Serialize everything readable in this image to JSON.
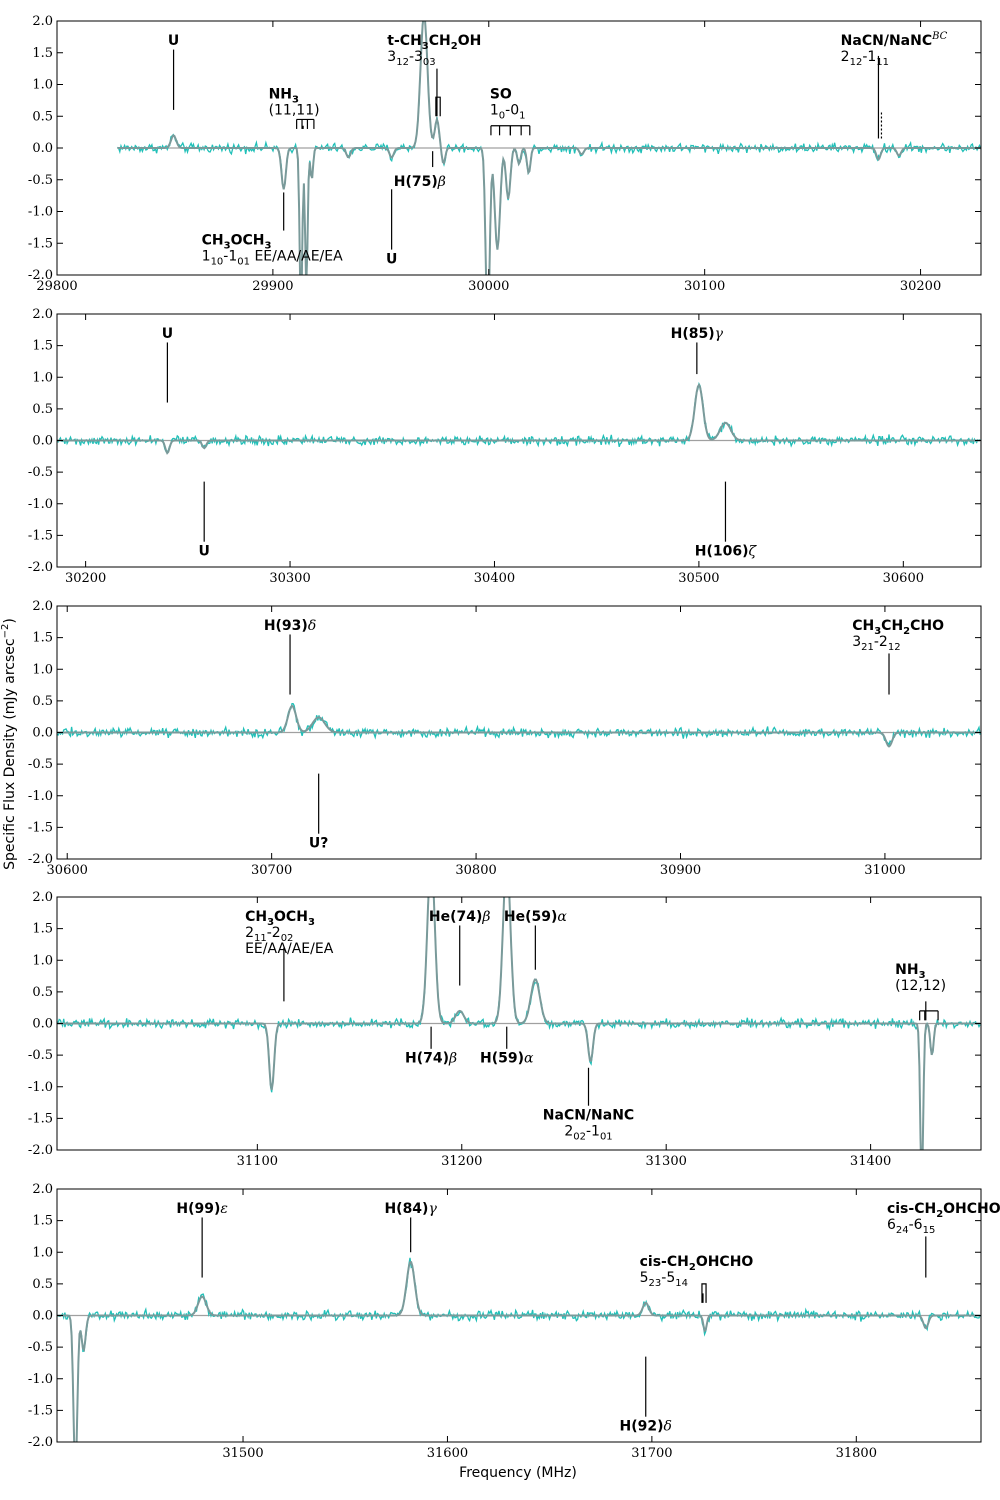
{
  "figure": {
    "ylabel": "Specific Flux Density (mJy arcsec",
    "ylabel_sup": "−2",
    "ylabel_close": ")",
    "xlabel": "Frequency (MHz)"
  },
  "colors": {
    "observed": "#20c0b8",
    "model": "#7a9a9a",
    "baseline": "#a0a0a0",
    "frame": "#000000"
  },
  "chart_data": [
    {
      "type": "line",
      "xlim": [
        29800,
        30228
      ],
      "ylim": [
        -2.0,
        2.0
      ],
      "xticks": [
        29800,
        29900,
        30000,
        30100,
        30200
      ],
      "yticks": [
        -2.0,
        -1.5,
        -1.0,
        -0.5,
        0.0,
        0.5,
        1.0,
        1.5,
        2.0
      ],
      "data_x_start": 29828,
      "features": [
        {
          "x": 29854,
          "w": 1.2,
          "a": 0.2
        },
        {
          "x": 29905,
          "w": 1.0,
          "a": -0.65
        },
        {
          "x": 29913,
          "w": 0.6,
          "a": -2.6
        },
        {
          "x": 29915.5,
          "w": 0.6,
          "a": -2.2
        },
        {
          "x": 29918,
          "w": 0.6,
          "a": -0.5
        },
        {
          "x": 29935,
          "w": 1.0,
          "a": -0.15
        },
        {
          "x": 29955,
          "w": 1.0,
          "a": -0.15
        },
        {
          "x": 29970,
          "w": 1.6,
          "a": 2.1
        },
        {
          "x": 29976,
          "w": 1.0,
          "a": 0.45
        },
        {
          "x": 29979,
          "w": 0.8,
          "a": -0.25
        },
        {
          "x": 29999.5,
          "w": 0.9,
          "a": -2.9
        },
        {
          "x": 30004,
          "w": 1.2,
          "a": -1.6
        },
        {
          "x": 30009,
          "w": 1.0,
          "a": -0.8
        },
        {
          "x": 30014,
          "w": 0.8,
          "a": -0.25
        },
        {
          "x": 30018.5,
          "w": 0.8,
          "a": -0.4
        },
        {
          "x": 30043,
          "w": 1.0,
          "a": -0.1
        },
        {
          "x": 30180.5,
          "w": 1.0,
          "a": -0.18
        },
        {
          "x": 30190,
          "w": 1.0,
          "a": -0.12
        }
      ],
      "annotations": [
        {
          "x": 29854,
          "y0": 0.6,
          "y1": 1.55,
          "title": "U",
          "text_x": 29854,
          "text_y": 1.62,
          "anchor": "middle",
          "extra": []
        },
        {
          "x": 29914,
          "y0": 0.3,
          "y1": 0.35,
          "title": "NH",
          "title_sub": "3",
          "text_x": 29898,
          "text_y": 0.78,
          "anchor": "start",
          "extra": [
            {
              "text": "(11,11)",
              "dy": 1
            }
          ],
          "bracket": [
            29911,
            29913.5,
            29916,
            29919
          ]
        },
        {
          "x": 29976,
          "y0": 0.5,
          "y1": 1.25,
          "title": "t-CH",
          "title_sub": "3",
          "title_rest": "CH",
          "title_sub2": "2",
          "title_rest2": "OH",
          "text_x": 29953,
          "text_y": 1.62,
          "anchor": "start",
          "extra": [
            {
              "text": "3",
              "sub": "12",
              "rest": "-3",
              "sub2": "03",
              "dy": 1
            }
          ],
          "bracket2": [
            29975.5,
            29977.5
          ]
        },
        {
          "x": 30010,
          "y0": 0.2,
          "y1": 0.35,
          "title": "SO",
          "text_x": 30000.5,
          "text_y": 0.78,
          "anchor": "start",
          "extra": [
            {
              "text": "1",
              "sub": "0",
              "rest": "-0",
              "sub2": "1",
              "dy": 1
            }
          ],
          "bracket": [
            30001,
            30005,
            30010,
            30015,
            30019
          ]
        },
        {
          "x": 30180.5,
          "y0": 0.15,
          "y1": 1.45,
          "title": "NaCN/NaNC",
          "title_sup": "BC",
          "text_x": 30163,
          "text_y": 1.62,
          "anchor": "start",
          "extra": [
            {
              "text": "2",
              "sub": "12",
              "rest": "-1",
              "sub2": "11",
              "dy": 1
            }
          ],
          "dotted": [
            30180.5,
            0.15,
            0.58
          ]
        },
        {
          "x": 29905,
          "y0": -0.7,
          "y1": -1.3,
          "title": "CH",
          "title_sub": "3",
          "title_rest": "OCH",
          "title_sub2": "3",
          "text_x": 29867,
          "text_y": -1.52,
          "anchor": "start",
          "extra": [
            {
              "text": "1",
              "sub": "10",
              "rest": "-1",
              "sub2": "01",
              "rest2": " EE/AA/AE/EA",
              "dy": 1
            }
          ]
        },
        {
          "x": 29955,
          "y0": -0.65,
          "y1": -1.6,
          "title": "U",
          "text_x": 29955,
          "text_y": -1.82,
          "anchor": "middle",
          "extra": []
        },
        {
          "x": 29974,
          "y0": -0.05,
          "y1": -0.3,
          "title": "H(75)",
          "title_greek": "β",
          "text_x": 29956,
          "text_y": -0.6,
          "anchor": "start",
          "extra": []
        }
      ]
    },
    {
      "type": "line",
      "xlim": [
        30186,
        30638
      ],
      "ylim": [
        -2.0,
        2.0
      ],
      "xticks": [
        30200,
        30300,
        30400,
        30500,
        30600
      ],
      "yticks": [
        -2.0,
        -1.5,
        -1.0,
        -0.5,
        0.0,
        0.5,
        1.0,
        1.5,
        2.0
      ],
      "data_x_start": 30186,
      "features": [
        {
          "x": 30240,
          "w": 1.0,
          "a": -0.2
        },
        {
          "x": 30258,
          "w": 1.0,
          "a": -0.12
        },
        {
          "x": 30500,
          "w": 2.0,
          "a": 0.88
        },
        {
          "x": 30513,
          "w": 2.6,
          "a": 0.28
        }
      ],
      "annotations": [
        {
          "x": 30240,
          "y0": 0.6,
          "y1": 1.55,
          "title": "U",
          "text_x": 30240,
          "text_y": 1.62,
          "anchor": "middle",
          "extra": []
        },
        {
          "x": 30499,
          "y0": 1.05,
          "y1": 1.55,
          "title": "H(85)",
          "title_greek": "γ",
          "text_x": 30499,
          "text_y": 1.62,
          "anchor": "middle",
          "extra": []
        },
        {
          "x": 30258,
          "y0": -0.65,
          "y1": -1.6,
          "title": "U",
          "text_x": 30258,
          "text_y": -1.82,
          "anchor": "middle",
          "extra": []
        },
        {
          "x": 30513,
          "y0": -0.65,
          "y1": -1.6,
          "title": "H(106)",
          "title_greek": "ζ",
          "text_x": 30513,
          "text_y": -1.82,
          "anchor": "middle",
          "extra": []
        }
      ]
    },
    {
      "type": "line",
      "xlim": [
        30595,
        31047
      ],
      "ylim": [
        -2.0,
        2.0
      ],
      "xticks": [
        30600,
        30700,
        30800,
        30900,
        31000
      ],
      "yticks": [
        -2.0,
        -1.5,
        -1.0,
        -0.5,
        0.0,
        0.5,
        1.0,
        1.5,
        2.0
      ],
      "data_x_start": 30595,
      "features": [
        {
          "x": 30710,
          "w": 2.0,
          "a": 0.42
        },
        {
          "x": 30723,
          "w": 3.0,
          "a": 0.24
        },
        {
          "x": 31002,
          "w": 1.5,
          "a": -0.22
        }
      ],
      "annotations": [
        {
          "x": 30709,
          "y0": 0.6,
          "y1": 1.55,
          "title": "H(93)",
          "title_greek": "δ",
          "text_x": 30709,
          "text_y": 1.62,
          "anchor": "middle",
          "extra": []
        },
        {
          "x": 31002,
          "y0": 0.6,
          "y1": 1.25,
          "title": "CH",
          "title_sub": "3",
          "title_rest": "CH",
          "title_sub2": "2",
          "title_rest2": "CHO",
          "text_x": 30984,
          "text_y": 1.62,
          "anchor": "start",
          "extra": [
            {
              "text": "3",
              "sub": "21",
              "rest": "-2",
              "sub2": "12",
              "dy": 1
            }
          ]
        },
        {
          "x": 30723,
          "y0": -0.65,
          "y1": -1.6,
          "title": "U?",
          "text_x": 30723,
          "text_y": -1.82,
          "anchor": "middle",
          "extra": []
        }
      ]
    },
    {
      "type": "line",
      "xlim": [
        31002,
        31454
      ],
      "ylim": [
        -2.0,
        2.0
      ],
      "xticks": [
        31100,
        31200,
        31300,
        31400
      ],
      "yticks": [
        -2.0,
        -1.5,
        -1.0,
        -0.5,
        0.0,
        0.5,
        1.0,
        1.5,
        2.0
      ],
      "data_x_start": 31002,
      "features": [
        {
          "x": 31107,
          "w": 1.2,
          "a": -1.05
        },
        {
          "x": 31185,
          "w": 1.8,
          "a": 2.6
        },
        {
          "x": 31199,
          "w": 2.0,
          "a": 0.2
        },
        {
          "x": 31222,
          "w": 1.8,
          "a": 2.6
        },
        {
          "x": 31236,
          "w": 2.2,
          "a": 0.7
        },
        {
          "x": 31263,
          "w": 1.2,
          "a": -0.6
        },
        {
          "x": 31425,
          "w": 0.7,
          "a": -2.6
        },
        {
          "x": 31430,
          "w": 0.8,
          "a": -0.5
        }
      ],
      "annotations": [
        {
          "x": 31113,
          "y0": 0.35,
          "y1": 1.2,
          "title": "CH",
          "title_sub": "3",
          "title_rest": "OCH",
          "title_sub2": "3",
          "text_x": 31094,
          "text_y": 1.62,
          "anchor": "start",
          "extra": [
            {
              "text": "2",
              "sub": "11",
              "rest": "-2",
              "sub2": "02",
              "dy": 1
            },
            {
              "text": "EE/AA/AE/EA",
              "dy": 2
            }
          ]
        },
        {
          "x": 31199,
          "y0": 0.6,
          "y1": 1.55,
          "title": "He(74)",
          "title_greek": "β",
          "text_x": 31199,
          "text_y": 1.62,
          "anchor": "middle",
          "extra": []
        },
        {
          "x": 31236,
          "y0": 0.85,
          "y1": 1.55,
          "title": "He(59)",
          "title_greek": "α",
          "text_x": 31236,
          "text_y": 1.62,
          "anchor": "middle",
          "extra": []
        },
        {
          "x": 31427,
          "y0": 0.05,
          "y1": 0.35,
          "title": "NH",
          "title_sub": "3",
          "text_x": 31412,
          "text_y": 0.78,
          "anchor": "start",
          "extra": [
            {
              "text": "(12,12)",
              "dy": 1
            }
          ],
          "bracket": [
            31424,
            31426.5,
            31433
          ]
        },
        {
          "x": 31185,
          "y0": -0.05,
          "y1": -0.4,
          "title": "H(74)",
          "title_greek": "β",
          "text_x": 31185,
          "text_y": -0.62,
          "anchor": "middle",
          "extra": []
        },
        {
          "x": 31222,
          "y0": -0.05,
          "y1": -0.4,
          "title": "H(59)",
          "title_greek": "α",
          "text_x": 31222,
          "text_y": -0.62,
          "anchor": "middle",
          "extra": []
        },
        {
          "x": 31262,
          "y0": -0.7,
          "y1": -1.3,
          "title": "NaCN/NaNC",
          "text_x": 31262,
          "text_y": -1.52,
          "anchor": "middle",
          "extra": [
            {
              "text": "2",
              "sub": "02",
              "rest": "-1",
              "sub2": "01",
              "dy": 1
            }
          ]
        }
      ]
    },
    {
      "type": "line",
      "xlim": [
        31409,
        31861
      ],
      "ylim": [
        -2.0,
        2.0
      ],
      "xticks": [
        31500,
        31600,
        31700,
        31800
      ],
      "yticks": [
        -2.0,
        -1.5,
        -1.0,
        -0.5,
        0.0,
        0.5,
        1.0,
        1.5,
        2.0
      ],
      "data_x_start": 31409,
      "features": [
        {
          "x": 31418,
          "w": 0.9,
          "a": -2.6
        },
        {
          "x": 31422,
          "w": 1.0,
          "a": -0.55
        },
        {
          "x": 31480,
          "w": 2.0,
          "a": 0.3
        },
        {
          "x": 31582,
          "w": 2.0,
          "a": 0.85
        },
        {
          "x": 31697,
          "w": 1.5,
          "a": 0.2
        },
        {
          "x": 31726,
          "w": 0.8,
          "a": -0.25
        },
        {
          "x": 31834,
          "w": 1.2,
          "a": -0.2
        }
      ],
      "annotations": [
        {
          "x": 31480,
          "y0": 0.6,
          "y1": 1.55,
          "title": "H(99)",
          "title_greek": "ε",
          "text_x": 31480,
          "text_y": 1.62,
          "anchor": "middle",
          "extra": []
        },
        {
          "x": 31582,
          "y0": 1.0,
          "y1": 1.55,
          "title": "H(84)",
          "title_greek": "γ",
          "text_x": 31582,
          "text_y": 1.62,
          "anchor": "middle",
          "extra": []
        },
        {
          "x": 31725,
          "y0": 0.2,
          "y1": 0.35,
          "title": "cis-CH",
          "title_sub": "2",
          "title_rest": "OHCHO",
          "text_x": 31694,
          "text_y": 0.78,
          "anchor": "start",
          "extra": [
            {
              "text": "5",
              "sub": "23",
              "rest": "-5",
              "sub2": "14",
              "dy": 1
            }
          ],
          "bracket2": [
            31724.5,
            31726.5
          ]
        },
        {
          "x": 31834,
          "y0": 0.6,
          "y1": 1.25,
          "title": "cis-CH",
          "title_sub": "2",
          "title_rest": "OHCHO",
          "text_x": 31815,
          "text_y": 1.62,
          "anchor": "start",
          "extra": [
            {
              "text": "6",
              "sub": "24",
              "rest": "-6",
              "sub2": "15",
              "dy": 1
            }
          ]
        },
        {
          "x": 31697,
          "y0": -0.65,
          "y1": -1.6,
          "title": "H(92)",
          "title_greek": "δ",
          "text_x": 31697,
          "text_y": -1.82,
          "anchor": "middle",
          "extra": []
        }
      ]
    }
  ]
}
